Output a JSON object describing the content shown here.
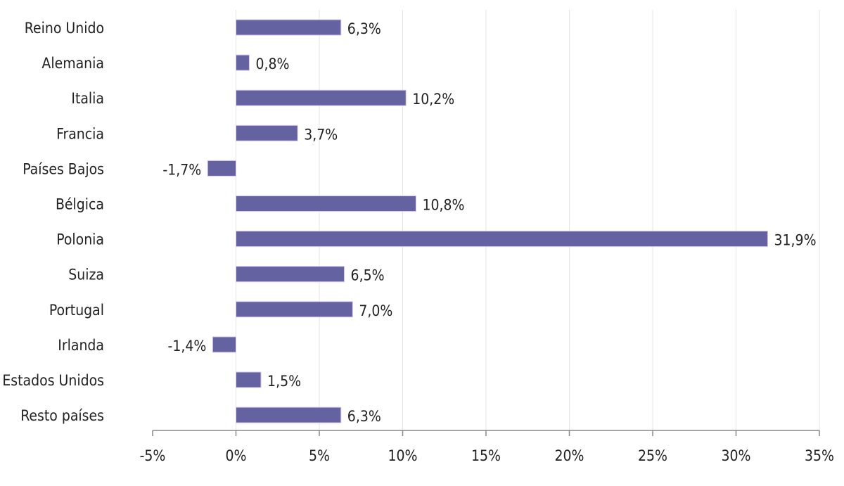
{
  "chart_data": {
    "type": "bar",
    "orientation": "horizontal",
    "categories": [
      "Reino Unido",
      "Alemania",
      "Italia",
      "Francia",
      "Países Bajos",
      "Bélgica",
      "Polonia",
      "Suiza",
      "Portugal",
      "Irlanda",
      "Estados Unidos",
      "Resto países"
    ],
    "values": [
      6.3,
      0.8,
      10.2,
      3.7,
      -1.7,
      10.8,
      31.9,
      6.5,
      7.0,
      -1.4,
      1.5,
      6.3
    ],
    "value_labels": [
      "6,3%",
      "0,8%",
      "10,2%",
      "3,7%",
      "-1,7%",
      "10,8%",
      "31,9%",
      "6,5%",
      "7,0%",
      "-1,4%",
      "1,5%",
      "6,3%"
    ],
    "xlim": [
      -5,
      35
    ],
    "x_ticks": [
      -5,
      0,
      5,
      10,
      15,
      20,
      25,
      30,
      35
    ],
    "x_tick_labels": [
      "-5%",
      "0%",
      "5%",
      "10%",
      "15%",
      "20%",
      "25%",
      "30%",
      "35%"
    ],
    "title": "",
    "xlabel": "",
    "ylabel": "",
    "grid": "vertical",
    "legend": "none",
    "bar_color": "#6462a0",
    "bar_edge_color": "#d9c8ec"
  }
}
